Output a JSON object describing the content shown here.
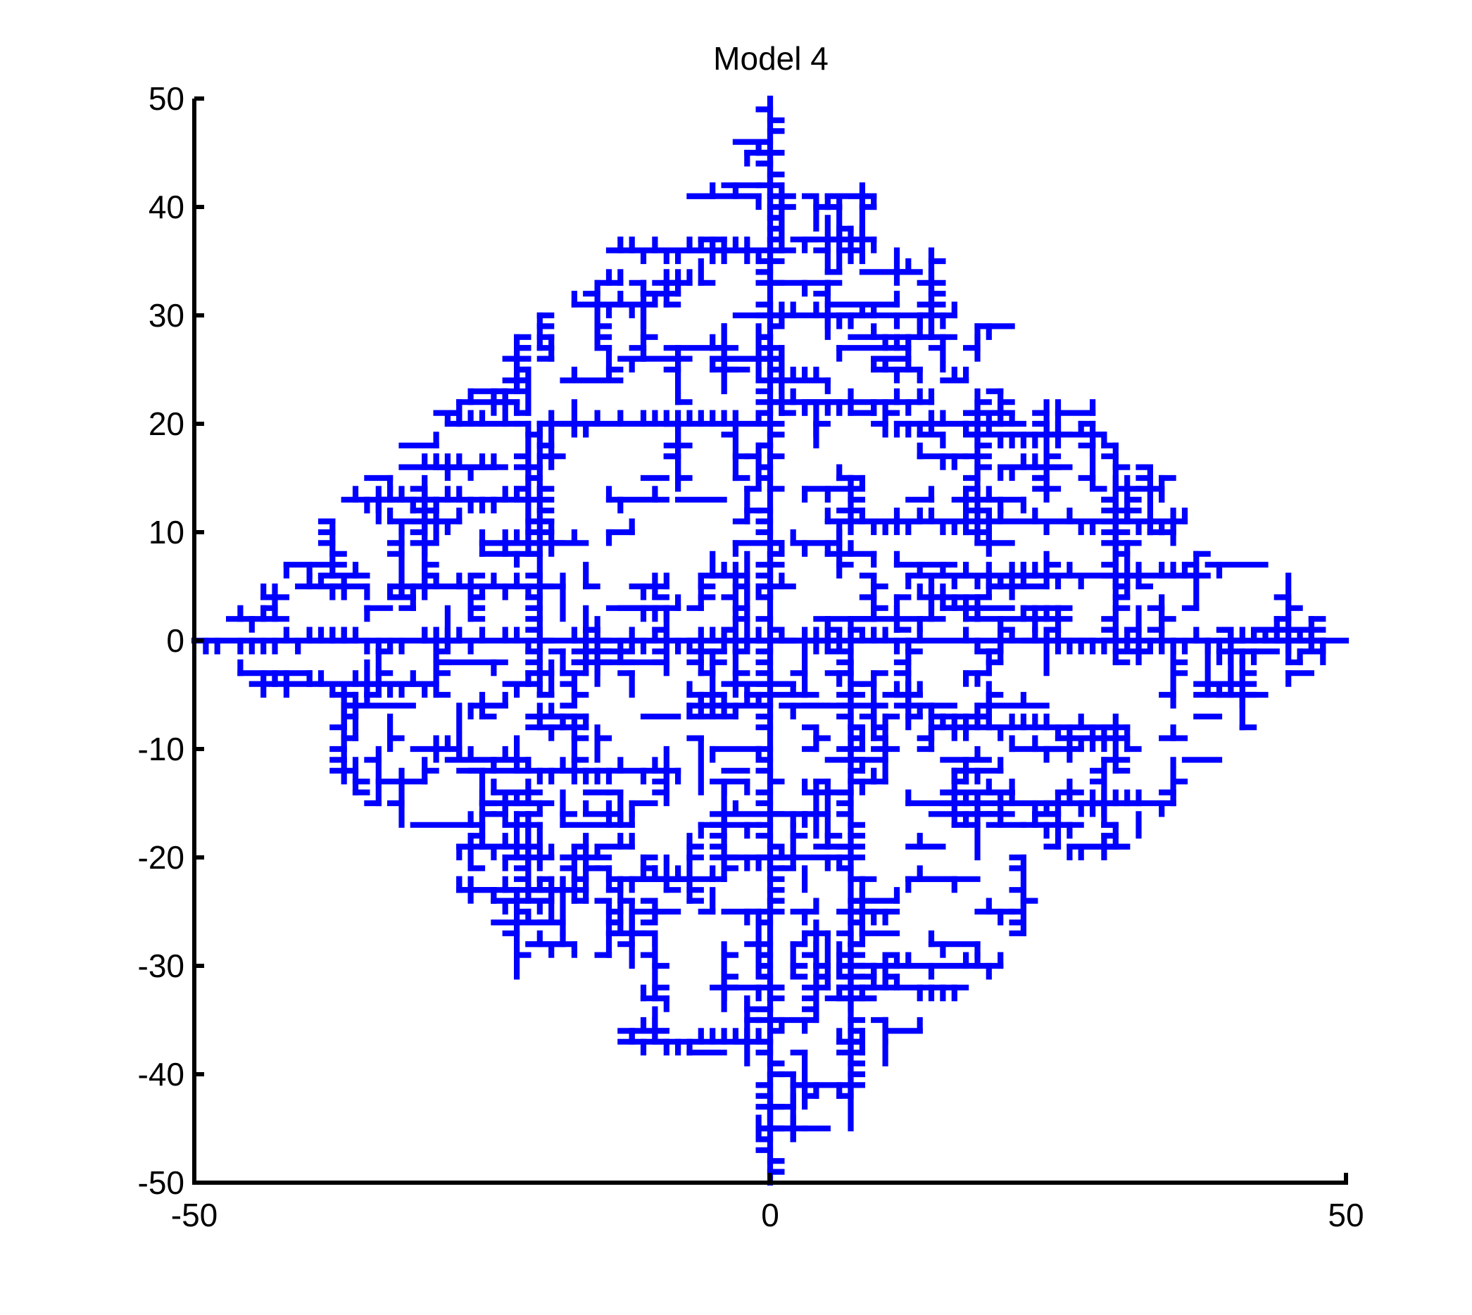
{
  "chart_data": {
    "type": "scatter",
    "title": "Model 4",
    "xlabel": "",
    "ylabel": "",
    "xlim": [
      -50,
      50
    ],
    "ylim": [
      -50,
      50
    ],
    "x_ticks": [
      -50,
      0,
      50
    ],
    "y_ticks": [
      50,
      40,
      30,
      20,
      10,
      0,
      -10,
      -20,
      -30,
      -40,
      -50
    ],
    "x_tick_labels": [
      "-50",
      "0",
      "50"
    ],
    "y_tick_labels": [
      "50",
      "40",
      "30",
      "20",
      "10",
      "0",
      "-10",
      "-20",
      "-30",
      "-40",
      "-50"
    ],
    "grid": false,
    "legend": "none",
    "series_color": "#0000ff",
    "description_of_marks": "diffusion-limited aggregation cluster on a square lattice, diamond-shaped, spanning roughly |x|+|y| <= 50 with main branches along both axes",
    "trunks": [
      {
        "axis": "x",
        "from": -50,
        "to": 50,
        "at": 0
      },
      {
        "axis": "y",
        "from": -50,
        "to": 50,
        "at": 0
      }
    ],
    "branches": [
      {
        "axis": "x",
        "at": 13,
        "from": -37,
        "to": -20
      },
      {
        "axis": "x",
        "at": 20,
        "from": -20,
        "to": 0
      },
      {
        "axis": "x",
        "at": 30,
        "from": 0,
        "to": 16
      },
      {
        "axis": "x",
        "at": 22,
        "from": 0,
        "to": 14
      },
      {
        "axis": "x",
        "at": 19,
        "from": 17,
        "to": 29
      },
      {
        "axis": "x",
        "at": 11,
        "from": 5,
        "to": 36
      },
      {
        "axis": "x",
        "at": 6,
        "from": 12,
        "to": 38
      },
      {
        "axis": "x",
        "at": 36,
        "from": -14,
        "to": 0
      },
      {
        "axis": "x",
        "at": -8,
        "from": 14,
        "to": 30
      },
      {
        "axis": "x",
        "at": -15,
        "from": 12,
        "to": 35
      },
      {
        "axis": "x",
        "at": -12,
        "from": -21,
        "to": -8
      },
      {
        "axis": "x",
        "at": -23,
        "from": -27,
        "to": -17
      },
      {
        "axis": "x",
        "at": -30,
        "from": 6,
        "to": 20
      },
      {
        "axis": "x",
        "at": -37,
        "from": -13,
        "to": 0
      },
      {
        "axis": "x",
        "at": -4,
        "from": -45,
        "to": -30
      },
      {
        "axis": "x",
        "at": 5,
        "from": -33,
        "to": -18
      },
      {
        "axis": "y",
        "at": -20,
        "from": -5,
        "to": 20
      },
      {
        "axis": "y",
        "at": 7,
        "from": -45,
        "to": -2
      },
      {
        "axis": "y",
        "at": 30,
        "from": -2,
        "to": 18
      },
      {
        "axis": "y",
        "at": 22,
        "from": -27,
        "to": -20
      },
      {
        "axis": "y",
        "at": -37,
        "from": -13,
        "to": -5
      },
      {
        "axis": "y",
        "at": -22,
        "from": -31,
        "to": -23
      },
      {
        "axis": "y",
        "at": 45,
        "from": -2,
        "to": 6
      },
      {
        "axis": "y",
        "at": -38,
        "from": 6,
        "to": 11
      }
    ]
  }
}
